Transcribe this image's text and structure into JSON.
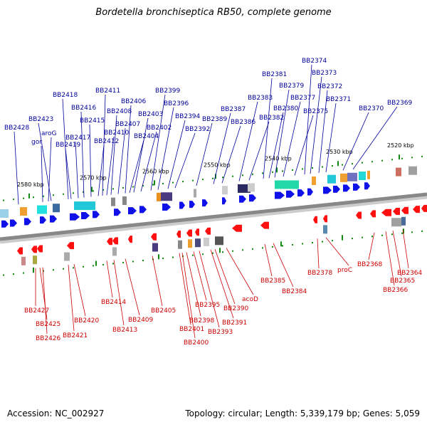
{
  "title": "Bordetella bronchiseptica RB50, complete genome",
  "footer": {
    "accession": "Accession: NC_002927",
    "topology": "Topology: circular; Length: 5,339,179 bp; Genes: 5,059"
  },
  "colors": {
    "forward_label": "#00009a",
    "reverse_label": "#cc0000",
    "forward_gene": "#1010e8",
    "reverse_gene": "#ff1010",
    "tick": "#118811",
    "backbone": "#888888"
  },
  "scale_labels": [
    "2580 kbp",
    "2570 kbp",
    "2560 kbp",
    "2550 kbp",
    "2540 kbp",
    "2530 kbp",
    "2520 kbp"
  ],
  "top_labels": [
    "BB2428",
    "gor",
    "aroG",
    "BB2423",
    "BB2419",
    "BB2418",
    "BB2417",
    "BB2416",
    "BB2415",
    "BB2412",
    "BB2411",
    "BB2410",
    "BB2408",
    "BB2407",
    "BB2406",
    "BB2404",
    "BB2403",
    "BB2402",
    "BB2399",
    "BB2396",
    "BB2394",
    "BB2392",
    "BB2389",
    "BB2387",
    "BB2386",
    "BB2383",
    "BB2382",
    "BB2381",
    "BB2380",
    "BB2379",
    "BB2377",
    "BB2375",
    "BB2374",
    "BB2373",
    "BB2372",
    "BB2371",
    "BB2370",
    "BB2369"
  ],
  "bottom_labels": [
    "BB2427",
    "BB2425",
    "BB2426",
    "BB2421",
    "BB2420",
    "BB2414",
    "BB2413",
    "BB2409",
    "BB2405",
    "BB2401",
    "BB2400",
    "BB2398",
    "BB2395",
    "BB2393",
    "BB2391",
    "BB2390",
    "acoD",
    "BB2385",
    "BB2384",
    "BB2378",
    "proC",
    "BB2368",
    "BB2366",
    "BB2365",
    "BB2364"
  ]
}
